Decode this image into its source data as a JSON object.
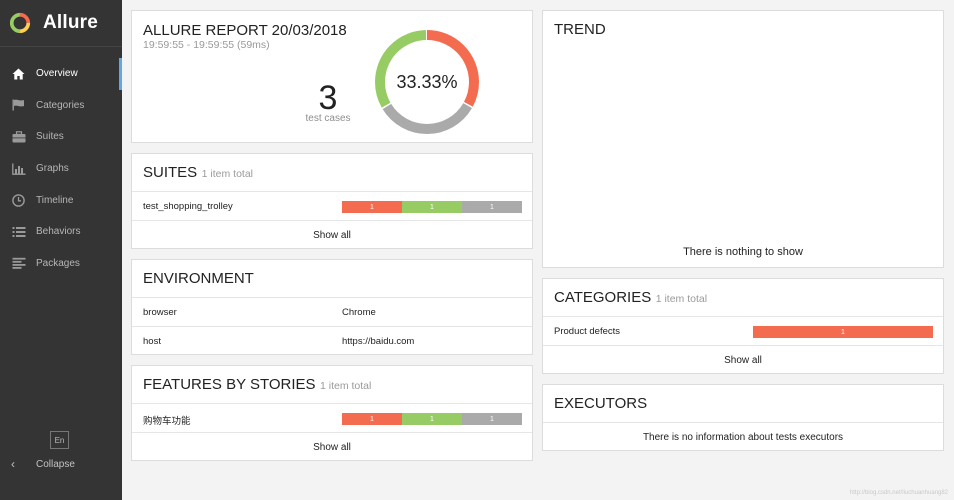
{
  "sidebar": {
    "brand": "Allure",
    "items": [
      {
        "label": "Overview",
        "icon": "home-icon"
      },
      {
        "label": "Categories",
        "icon": "flag-icon"
      },
      {
        "label": "Suites",
        "icon": "briefcase-icon"
      },
      {
        "label": "Graphs",
        "icon": "bar-chart-icon"
      },
      {
        "label": "Timeline",
        "icon": "clock-icon"
      },
      {
        "label": "Behaviors",
        "icon": "list-icon"
      },
      {
        "label": "Packages",
        "icon": "align-left-icon"
      }
    ],
    "language": "En",
    "collapse_label": "Collapse"
  },
  "summary": {
    "title": "ALLURE REPORT 20/03/2018",
    "time": "19:59:55 - 19:59:55 (59ms)",
    "count": "3",
    "count_label": "test cases",
    "percent": "33.33%",
    "donut": [
      {
        "status": "failed",
        "value": 1,
        "color": "#f36c4f"
      },
      {
        "status": "broken",
        "value": 1,
        "color": "#aaaaaa"
      },
      {
        "status": "passed",
        "value": 1,
        "color": "#97cc64"
      }
    ]
  },
  "suites": {
    "title": "SUITES",
    "total": "1 item total",
    "rows": [
      {
        "name": "test_shopping_trolley",
        "red": "1",
        "green": "1",
        "grey": "1"
      }
    ],
    "show_all": "Show all"
  },
  "environment": {
    "title": "ENVIRONMENT",
    "rows": [
      {
        "key": "browser",
        "value": "Chrome"
      },
      {
        "key": "host",
        "value": "https://baidu.com"
      }
    ]
  },
  "features": {
    "title": "FEATURES BY STORIES",
    "total": "1 item total",
    "rows": [
      {
        "name": "购物车功能",
        "red": "1",
        "green": "1",
        "grey": "1"
      }
    ],
    "show_all": "Show all"
  },
  "trend": {
    "title": "TREND",
    "empty": "There is nothing to show"
  },
  "categories": {
    "title": "CATEGORIES",
    "total": "1 item total",
    "rows": [
      {
        "name": "Product defects",
        "count": "1"
      }
    ],
    "show_all": "Show all"
  },
  "executors": {
    "title": "EXECUTORS",
    "empty": "There is no information about tests executors"
  },
  "watermark": "http://blog.csdn.net/liuchuanhuang82"
}
